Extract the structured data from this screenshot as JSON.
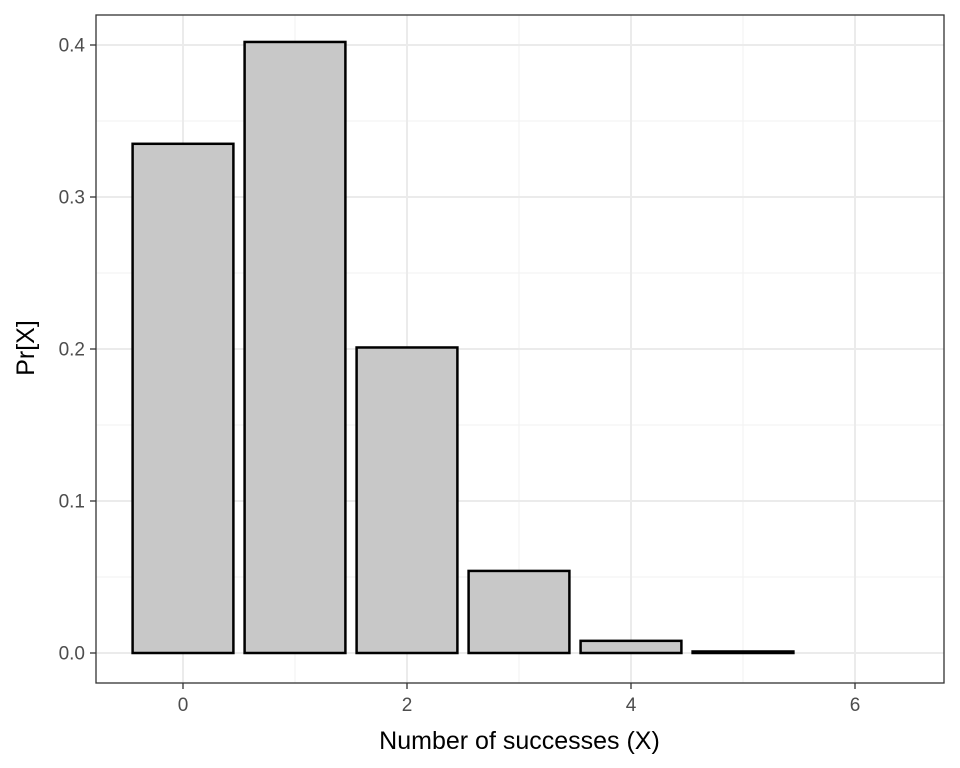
{
  "chart_data": {
    "type": "bar",
    "x": [
      0,
      1,
      2,
      3,
      4,
      5,
      6
    ],
    "values": [
      0.335,
      0.402,
      0.201,
      0.054,
      0.008,
      0.001,
      0.0
    ],
    "xlabel": "Number of successes (X)",
    "ylabel": "Pr[X]",
    "xlim": [
      -0.5,
      6.5
    ],
    "ylim": [
      0,
      0.4
    ],
    "x_ticks": [
      0,
      2,
      4,
      6
    ],
    "x_tick_labels": [
      "0",
      "2",
      "4",
      "6"
    ],
    "y_ticks": [
      0,
      0.1,
      0.2,
      0.3,
      0.4
    ],
    "y_tick_labels": [
      "0.0",
      "0.1",
      "0.2",
      "0.3",
      "0.4"
    ],
    "grid": true,
    "colors": {
      "bar_fill": "#c8c8c8",
      "bar_stroke": "#000000",
      "grid_major": "#ebebeb",
      "grid_minor": "#f2f2f2",
      "panel_border": "#333333"
    }
  }
}
